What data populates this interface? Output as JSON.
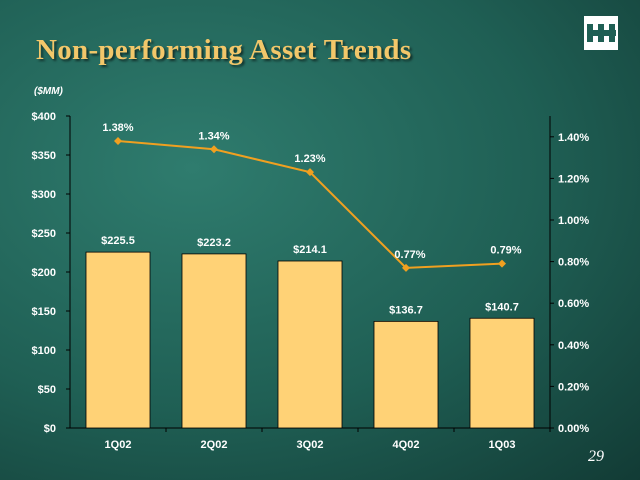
{
  "title": "Non-performing Asset Trends",
  "units": "($MM)",
  "page_number": "29",
  "icons": {
    "logo": "bank-logo-icon"
  },
  "colors": {
    "bar": "#ffd276",
    "line": "#f0a020",
    "title": "#f2c76a"
  },
  "chart_data": {
    "type": "bar",
    "title": "",
    "categories": [
      "1Q02",
      "2Q02",
      "3Q02",
      "4Q02",
      "1Q03"
    ],
    "series": [
      {
        "type": "bar",
        "axis": "left",
        "values": [
          225.5,
          223.2,
          214.1,
          136.7,
          140.7
        ],
        "labels": [
          "$225.5",
          "$223.2",
          "$214.1",
          "$136.7",
          "$140.7"
        ]
      },
      {
        "type": "line",
        "axis": "right",
        "values": [
          1.38,
          1.34,
          1.23,
          0.77,
          0.79
        ],
        "labels": [
          "1.38%",
          "1.34%",
          "1.23%",
          "0.77%",
          "0.79%"
        ]
      }
    ],
    "y_left": {
      "min": 0,
      "max": 400,
      "step": 50,
      "tick_labels": [
        "$0",
        "$50",
        "$100",
        "$150",
        "$200",
        "$250",
        "$300",
        "$350",
        "$400"
      ]
    },
    "y_right": {
      "min": 0,
      "max": 1.5,
      "step": 0.2,
      "tick_labels": [
        "0.00%",
        "0.20%",
        "0.40%",
        "0.60%",
        "0.80%",
        "1.00%",
        "1.20%",
        "1.40%"
      ]
    },
    "grid": false,
    "legend": "none"
  }
}
